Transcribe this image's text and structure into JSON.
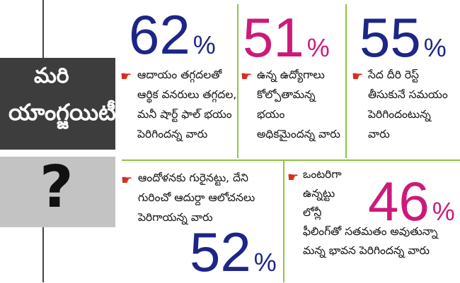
{
  "title_box": {
    "line1": "మరి",
    "line2": "యాంగ్జయిటీ"
  },
  "question_mark": "?",
  "colors": {
    "blue": "#1d2589",
    "magenta": "#cc1a7a",
    "pointer_red": "#d72e1e",
    "divider_green": "#8cc63f"
  },
  "pointer_icon": "pointing-hand-icon",
  "stats": [
    {
      "value": "62",
      "unit": "%",
      "text": "ఆదాయం తగ్గదలతో\nఆర్థిక వనరులు తగ్గదల,\nమనీ షార్ట్ ఫాల్ భయం\nపెరిగిందన్న వారు"
    },
    {
      "value": "51",
      "unit": "%",
      "text": "ఉన్న ఉద్యోగాలు\nకోల్పోతామన్న\nభయం\nఅధికమైందన్న వారు"
    },
    {
      "value": "55",
      "unit": "%",
      "text": "సేద దీరి రెస్ట్\nతీసుకునే సమయం\nపెరిగిందంటున్న\nవారు"
    },
    {
      "value": "52",
      "unit": "%",
      "text": "ఆందోళనకు గురైనట్టు, దేని\nగురించో ఆదుర్దా ఆలోచనలు\nపెరిగాయన్న వారు"
    },
    {
      "value": "46",
      "unit": "%",
      "text": "ఒంటరిగా\nఉన్నట్టు\nలోన్లీ\nఫీలింగ్‌తో సతమతం అవుతున్నా\nమన్న భావన పెరిగిందన్న వారు"
    }
  ]
}
